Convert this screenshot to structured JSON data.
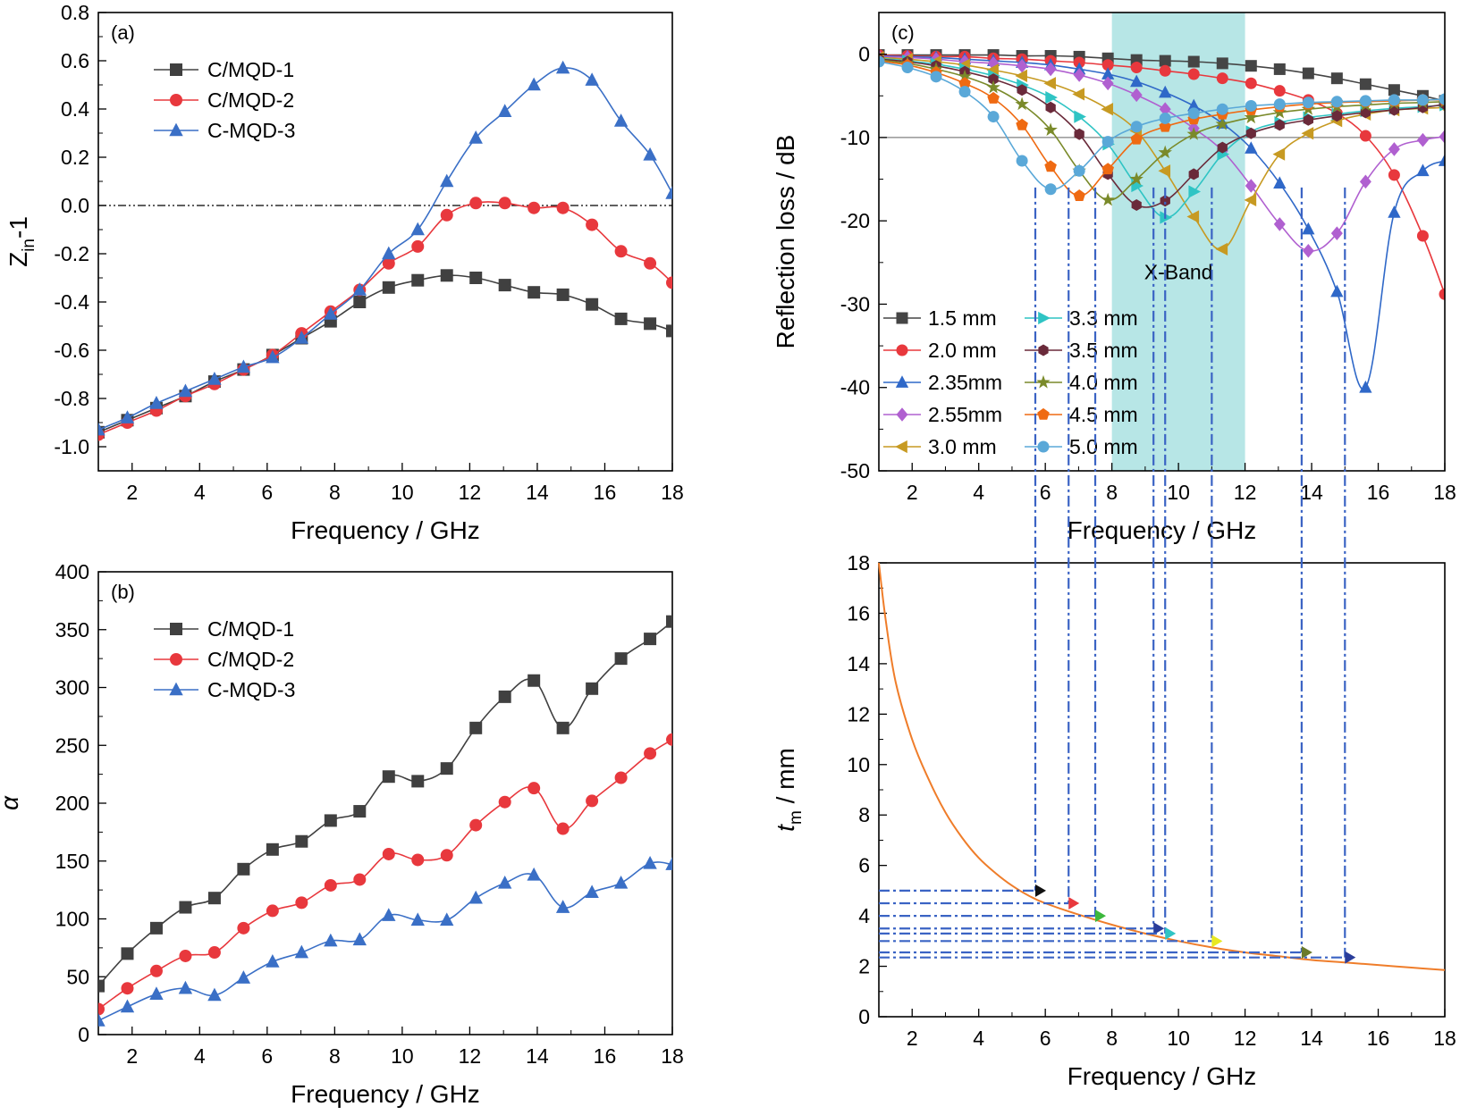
{
  "colors": {
    "black": "#404040",
    "red": "#e8383d",
    "blue": "#3a6fc6",
    "band": "#b7e6e6",
    "orange": "#ef7d2a",
    "guide": "#3a63c4",
    "mm15": "#454545",
    "mm20": "#e8383d",
    "mm235": "#2f68c8",
    "mm255": "#b060d0",
    "mm30": "#c79a22",
    "mm33": "#2fc4c4",
    "mm35": "#6a2a3a",
    "mm40": "#7a8a2a",
    "mm45": "#ef6a12",
    "mm50": "#5aa8d8",
    "marker_yellow": "#e8e820"
  },
  "chart_data": [
    {
      "id": "a",
      "type": "line",
      "panel_label": "(a)",
      "xlabel": "Frequency / GHz",
      "ylabel_main": "Z",
      "ylabel_sub": "in",
      "ylabel_tail": "-1",
      "xlim": [
        1,
        18
      ],
      "ylim": [
        -1.1,
        0.8
      ],
      "xticks": [
        2,
        4,
        6,
        8,
        10,
        12,
        14,
        16,
        18
      ],
      "yticks": [
        -1.0,
        -0.8,
        -0.6,
        -0.4,
        -0.2,
        0.0,
        0.2,
        0.4,
        0.6,
        0.8
      ],
      "ytick_labels": [
        "-1.0",
        "-0.8",
        "-0.6",
        "-0.4",
        "-0.2",
        "0.0",
        "0.2",
        "0.4",
        "0.6",
        "0.8"
      ],
      "reference_line": 0.0,
      "legend_position": "top-left",
      "x": [
        1.0,
        1.86,
        2.72,
        3.58,
        4.44,
        5.3,
        6.16,
        7.02,
        7.88,
        8.74,
        9.6,
        10.46,
        11.32,
        12.18,
        13.04,
        13.9,
        14.76,
        15.62,
        16.48,
        17.34,
        18.0
      ],
      "series": [
        {
          "name": "C/MQD-1",
          "marker": "square",
          "color": "black",
          "values": [
            -0.94,
            -0.89,
            -0.84,
            -0.79,
            -0.73,
            -0.68,
            -0.62,
            -0.55,
            -0.48,
            -0.4,
            -0.34,
            -0.31,
            -0.29,
            -0.3,
            -0.33,
            -0.36,
            -0.37,
            -0.41,
            -0.47,
            -0.49,
            -0.52
          ]
        },
        {
          "name": "C/MQD-2",
          "marker": "circle",
          "color": "red",
          "values": [
            -0.95,
            -0.9,
            -0.85,
            -0.79,
            -0.74,
            -0.68,
            -0.62,
            -0.53,
            -0.44,
            -0.35,
            -0.24,
            -0.17,
            -0.04,
            0.01,
            0.01,
            -0.01,
            -0.01,
            -0.08,
            -0.19,
            -0.24,
            -0.32
          ]
        },
        {
          "name": "C-MQD-3",
          "marker": "triangle",
          "color": "blue",
          "values": [
            -0.93,
            -0.88,
            -0.82,
            -0.77,
            -0.72,
            -0.67,
            -0.63,
            -0.55,
            -0.45,
            -0.35,
            -0.2,
            -0.1,
            0.1,
            0.28,
            0.39,
            0.5,
            0.57,
            0.52,
            0.35,
            0.21,
            0.05
          ]
        }
      ]
    },
    {
      "id": "b",
      "type": "line",
      "panel_label": "(b)",
      "xlabel": "Frequency / GHz",
      "ylabel": "α",
      "xlim": [
        1,
        18
      ],
      "ylim": [
        0,
        400
      ],
      "xticks": [
        2,
        4,
        6,
        8,
        10,
        12,
        14,
        16,
        18
      ],
      "yticks": [
        0,
        50,
        100,
        150,
        200,
        250,
        300,
        350,
        400
      ],
      "ytick_labels": [
        "0",
        "50",
        "100",
        "150",
        "200",
        "250",
        "300",
        "350",
        "400"
      ],
      "legend_position": "top-left",
      "x": [
        1.0,
        1.86,
        2.72,
        3.58,
        4.44,
        5.3,
        6.16,
        7.02,
        7.88,
        8.74,
        9.6,
        10.46,
        11.32,
        12.18,
        13.04,
        13.9,
        14.76,
        15.62,
        16.48,
        17.34,
        18.0
      ],
      "series": [
        {
          "name": "C/MQD-1",
          "marker": "square",
          "color": "black",
          "values": [
            42,
            70,
            92,
            110,
            118,
            143,
            160,
            167,
            185,
            193,
            223,
            219,
            230,
            265,
            292,
            306,
            265,
            299,
            325,
            342,
            357
          ]
        },
        {
          "name": "C/MQD-2",
          "marker": "circle",
          "color": "red",
          "values": [
            22,
            40,
            55,
            68,
            71,
            92,
            107,
            114,
            129,
            134,
            156,
            151,
            155,
            181,
            201,
            213,
            178,
            202,
            222,
            243,
            255
          ]
        },
        {
          "name": "C-MQD-3",
          "marker": "triangle",
          "color": "blue",
          "values": [
            12,
            24,
            35,
            40,
            34,
            49,
            63,
            71,
            81,
            82,
            103,
            99,
            99,
            118,
            131,
            138,
            110,
            123,
            131,
            148,
            147
          ]
        }
      ]
    },
    {
      "id": "c",
      "type": "line",
      "panel_label": "(c)",
      "xlabel": "Frequency / GHz",
      "ylabel": "Reflection loss / dB",
      "xlim": [
        1,
        18
      ],
      "ylim": [
        -50,
        5
      ],
      "xticks": [
        2,
        4,
        6,
        8,
        10,
        12,
        14,
        16,
        18
      ],
      "yticks": [
        0,
        -10,
        -20,
        -30,
        -40,
        -50
      ],
      "ytick_labels": [
        "0",
        "-10",
        "-20",
        "-30",
        "-40",
        "-50"
      ],
      "reference_line": -10,
      "band": {
        "label": "X-Band",
        "from": 8,
        "to": 12
      },
      "legend_position": "bottom-left",
      "x": [
        1.0,
        1.86,
        2.72,
        3.58,
        4.44,
        5.3,
        6.16,
        7.02,
        7.88,
        8.74,
        9.6,
        10.46,
        11.32,
        12.18,
        13.04,
        13.9,
        14.76,
        15.62,
        16.48,
        17.34,
        18.0
      ],
      "series": [
        {
          "name": "1.5  mm",
          "marker": "square",
          "color": "mm15",
          "values": [
            -0.1,
            -0.1,
            -0.1,
            -0.1,
            -0.1,
            -0.2,
            -0.2,
            -0.3,
            -0.5,
            -0.7,
            -0.8,
            -0.9,
            -1.1,
            -1.4,
            -1.8,
            -2.3,
            -2.9,
            -3.6,
            -4.3,
            -5.0,
            -5.6
          ]
        },
        {
          "name": "2.0  mm",
          "marker": "circle",
          "color": "mm20",
          "values": [
            -0.1,
            -0.2,
            -0.3,
            -0.3,
            -0.5,
            -0.6,
            -0.8,
            -1.0,
            -1.3,
            -1.6,
            -2.0,
            -2.4,
            -2.9,
            -3.5,
            -4.4,
            -5.5,
            -7.1,
            -9.8,
            -14.5,
            -21.8,
            -28.8
          ]
        },
        {
          "name": "2.35mm",
          "marker": "triangle",
          "color": "mm235",
          "values": [
            -0.2,
            -0.3,
            -0.4,
            -0.6,
            -0.8,
            -1.0,
            -1.3,
            -1.8,
            -2.4,
            -3.3,
            -4.6,
            -6.2,
            -8.3,
            -11.3,
            -15.5,
            -21.0,
            -28.5,
            -40.0,
            -19.0,
            -14.0,
            -12.8
          ]
        },
        {
          "name": "2.55mm",
          "marker": "diamond",
          "color": "mm255",
          "values": [
            -0.3,
            -0.4,
            -0.6,
            -0.9,
            -1.1,
            -1.4,
            -1.8,
            -2.5,
            -3.5,
            -4.9,
            -6.6,
            -8.9,
            -11.6,
            -15.8,
            -20.4,
            -23.6,
            -21.5,
            -15.3,
            -11.4,
            -10.3,
            -9.9
          ]
        },
        {
          "name": "3.0  mm",
          "marker": "tri-left",
          "color": "mm30",
          "values": [
            -0.4,
            -0.6,
            -0.9,
            -1.3,
            -1.9,
            -2.6,
            -3.5,
            -4.8,
            -6.6,
            -9.2,
            -14.0,
            -19.5,
            -23.4,
            -17.5,
            -12.0,
            -9.5,
            -8.0,
            -7.2,
            -6.7,
            -6.5,
            -6.4
          ]
        },
        {
          "name": "3.3  mm",
          "marker": "tri-right",
          "color": "mm33",
          "values": [
            -0.5,
            -0.8,
            -1.2,
            -1.8,
            -2.6,
            -3.7,
            -5.2,
            -7.5,
            -10.8,
            -15.8,
            -19.6,
            -16.5,
            -12.0,
            -9.3,
            -8.2,
            -7.6,
            -7.2,
            -6.8,
            -6.5,
            -6.3,
            -6.1
          ]
        },
        {
          "name": "3.5  mm",
          "marker": "hexagon",
          "color": "mm35",
          "values": [
            -0.6,
            -0.9,
            -1.4,
            -2.1,
            -3.0,
            -4.3,
            -6.4,
            -9.6,
            -14.4,
            -18.1,
            -17.6,
            -14.4,
            -11.2,
            -9.5,
            -8.5,
            -7.9,
            -7.4,
            -7.0,
            -6.7,
            -6.4,
            -6.0
          ]
        },
        {
          "name": "4.0  mm",
          "marker": "star",
          "color": "mm40",
          "values": [
            -0.7,
            -1.1,
            -1.8,
            -2.7,
            -4.0,
            -6.0,
            -9.1,
            -14.0,
            -17.5,
            -15.0,
            -11.8,
            -9.6,
            -8.4,
            -7.6,
            -7.0,
            -6.6,
            -6.3,
            -6.1,
            -5.9,
            -5.8,
            -5.7
          ]
        },
        {
          "name": "4.5  mm",
          "marker": "pentagon",
          "color": "mm45",
          "values": [
            -0.8,
            -1.3,
            -2.2,
            -3.5,
            -5.3,
            -8.5,
            -13.5,
            -17.0,
            -13.8,
            -10.2,
            -8.7,
            -7.8,
            -7.2,
            -6.7,
            -6.3,
            -6.0,
            -5.8,
            -5.7,
            -5.6,
            -5.5,
            -5.5
          ]
        },
        {
          "name": "5.0  mm",
          "marker": "circle",
          "color": "mm50",
          "values": [
            -0.9,
            -1.6,
            -2.7,
            -4.5,
            -7.5,
            -12.8,
            -16.2,
            -14.0,
            -10.5,
            -8.7,
            -7.7,
            -7.1,
            -6.6,
            -6.2,
            -6.0,
            -5.8,
            -5.7,
            -5.6,
            -5.5,
            -5.5,
            -5.4
          ]
        }
      ]
    },
    {
      "id": "d",
      "type": "line",
      "xlabel": "Frequency / GHz",
      "ylabel_main": "t",
      "ylabel_sub": "m",
      "ylabel_tail": " / mm",
      "xlim": [
        1,
        18
      ],
      "ylim": [
        0,
        18
      ],
      "xticks": [
        2,
        4,
        6,
        8,
        10,
        12,
        14,
        16,
        18
      ],
      "yticks": [
        0,
        2,
        4,
        6,
        8,
        10,
        12,
        14,
        16,
        18
      ],
      "ytick_labels": [
        "0",
        "2",
        "4",
        "6",
        "8",
        "10",
        "12",
        "14",
        "16",
        "18"
      ],
      "curve": {
        "x": [
          1.0,
          1.2,
          1.5,
          2.0,
          2.5,
          3.0,
          3.5,
          4.0,
          4.5,
          5.0,
          5.5,
          6.0,
          7.0,
          8.0,
          9.0,
          10.0,
          11.0,
          12.0,
          13.0,
          14.0,
          15.0,
          16.0,
          17.0,
          18.0
        ],
        "y": [
          18.0,
          15.8,
          13.3,
          11.0,
          9.4,
          8.1,
          7.1,
          6.3,
          5.7,
          5.2,
          4.8,
          4.5,
          4.05,
          3.65,
          3.3,
          3.0,
          2.75,
          2.55,
          2.4,
          2.25,
          2.15,
          2.05,
          1.95,
          1.85
        ],
        "color": "orange"
      },
      "matches": [
        {
          "x": 5.7,
          "t": 5.0,
          "color": "#111111"
        },
        {
          "x": 6.7,
          "t": 4.5,
          "color": "mm20"
        },
        {
          "x": 7.5,
          "t": 4.0,
          "color": "#3cb83c"
        },
        {
          "x": 9.25,
          "t": 3.5,
          "color": "#2a3d9a"
        },
        {
          "x": 9.6,
          "t": 3.3,
          "color": "mm33"
        },
        {
          "x": 11.0,
          "t": 3.0,
          "color": "marker_yellow"
        },
        {
          "x": 13.7,
          "t": 2.55,
          "color": "#6a7a2a"
        },
        {
          "x": 15.0,
          "t": 2.35,
          "color": "#2a3d9a"
        }
      ]
    }
  ]
}
